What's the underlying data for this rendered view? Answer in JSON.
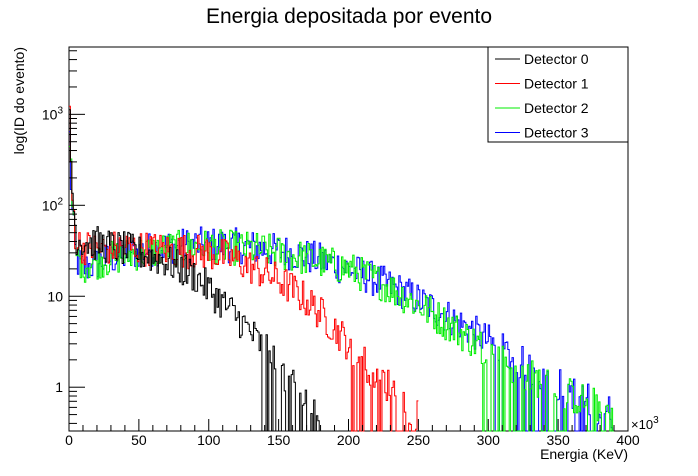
{
  "chart_data": {
    "type": "line",
    "step": true,
    "title": "Energia depositada por evento",
    "xlabel": "Energia (KeV)",
    "ylabel": "log(ID do evento)",
    "x_multiplier_label": "×10",
    "x_multiplier_exp": "3",
    "xlim": [
      0,
      400
    ],
    "ylim": [
      0.33,
      5500
    ],
    "yscale": "log",
    "grid": false,
    "legend_position": "top-right",
    "x_ticks": [
      "0",
      "50",
      "100",
      "150",
      "200",
      "250",
      "300",
      "350",
      "400"
    ],
    "y_ticks": [
      {
        "value": 1,
        "label": "1"
      },
      {
        "value": 10,
        "label": "10"
      },
      {
        "value": 100,
        "base": "10",
        "exp": "2"
      },
      {
        "value": 1000,
        "base": "10",
        "exp": "3"
      }
    ],
    "series": [
      {
        "name": "Detector 0",
        "color": "#000000",
        "points": [
          [
            0,
            2000
          ],
          [
            2,
            180
          ],
          [
            5,
            45
          ],
          [
            10,
            40
          ],
          [
            20,
            38
          ],
          [
            30,
            35
          ],
          [
            40,
            33
          ],
          [
            50,
            30
          ],
          [
            60,
            27
          ],
          [
            70,
            24
          ],
          [
            80,
            20
          ],
          [
            90,
            17
          ],
          [
            100,
            12
          ],
          [
            110,
            8.5
          ],
          [
            120,
            6
          ],
          [
            130,
            4
          ],
          [
            140,
            2.6
          ],
          [
            150,
            1.6
          ],
          [
            160,
            1
          ],
          [
            170,
            0.7
          ],
          [
            180,
            0.5
          ]
        ]
      },
      {
        "name": "Detector 1",
        "color": "#ff0000",
        "points": [
          [
            0,
            1500
          ],
          [
            2,
            150
          ],
          [
            5,
            40
          ],
          [
            10,
            35
          ],
          [
            20,
            33
          ],
          [
            30,
            34
          ],
          [
            40,
            34
          ],
          [
            50,
            34
          ],
          [
            60,
            33
          ],
          [
            70,
            32
          ],
          [
            80,
            32
          ],
          [
            90,
            31
          ],
          [
            100,
            30
          ],
          [
            110,
            28
          ],
          [
            120,
            25
          ],
          [
            130,
            21
          ],
          [
            140,
            18
          ],
          [
            150,
            15
          ],
          [
            160,
            12
          ],
          [
            170,
            9
          ],
          [
            180,
            6.5
          ],
          [
            190,
            4.5
          ],
          [
            200,
            3
          ],
          [
            210,
            2
          ],
          [
            220,
            1.4
          ],
          [
            230,
            1
          ],
          [
            240,
            0.7
          ],
          [
            250,
            0.5
          ]
        ]
      },
      {
        "name": "Detector 2",
        "color": "#00ee00",
        "points": [
          [
            0,
            1200
          ],
          [
            2,
            120
          ],
          [
            5,
            30
          ],
          [
            10,
            22
          ],
          [
            20,
            24
          ],
          [
            30,
            26
          ],
          [
            40,
            28
          ],
          [
            50,
            30
          ],
          [
            60,
            31
          ],
          [
            70,
            33
          ],
          [
            80,
            34
          ],
          [
            90,
            35
          ],
          [
            100,
            35
          ],
          [
            120,
            34
          ],
          [
            140,
            32
          ],
          [
            160,
            28
          ],
          [
            180,
            24
          ],
          [
            200,
            20
          ],
          [
            220,
            15
          ],
          [
            240,
            10
          ],
          [
            260,
            6.5
          ],
          [
            280,
            4
          ],
          [
            300,
            2.5
          ],
          [
            320,
            1.6
          ],
          [
            340,
            1.1
          ],
          [
            360,
            0.8
          ],
          [
            380,
            0.6
          ],
          [
            390,
            0.5
          ]
        ]
      },
      {
        "name": "Detector 3",
        "color": "#0000ff",
        "points": [
          [
            0,
            1000
          ],
          [
            2,
            100
          ],
          [
            5,
            25
          ],
          [
            10,
            20
          ],
          [
            20,
            23
          ],
          [
            30,
            26
          ],
          [
            40,
            28
          ],
          [
            50,
            31
          ],
          [
            60,
            33
          ],
          [
            70,
            35
          ],
          [
            80,
            36
          ],
          [
            90,
            37
          ],
          [
            100,
            37
          ],
          [
            120,
            36
          ],
          [
            140,
            33
          ],
          [
            160,
            30
          ],
          [
            180,
            25
          ],
          [
            200,
            20
          ],
          [
            220,
            15
          ],
          [
            240,
            11
          ],
          [
            260,
            7.5
          ],
          [
            280,
            5
          ],
          [
            300,
            3.2
          ],
          [
            320,
            2
          ],
          [
            340,
            1.3
          ],
          [
            360,
            0.9
          ],
          [
            380,
            0.6
          ],
          [
            390,
            0.5
          ]
        ]
      }
    ]
  }
}
